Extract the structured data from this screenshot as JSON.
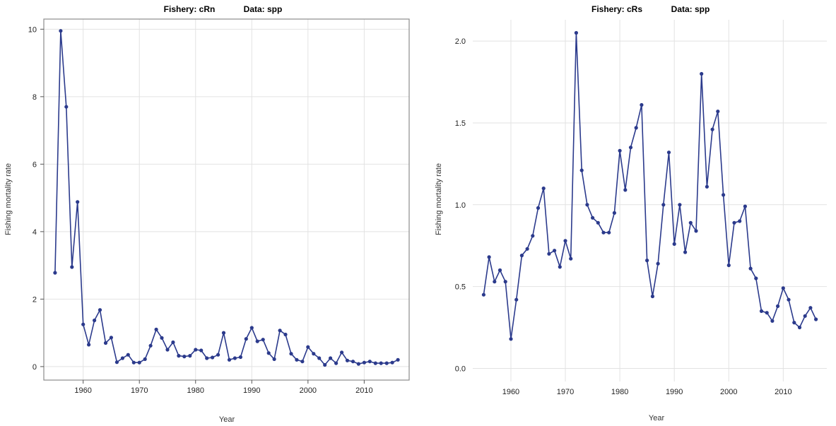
{
  "chart_data": [
    {
      "type": "line",
      "title_left": "Fishery: cRn",
      "title_right": "Data: spp",
      "xlabel": "Year",
      "ylabel": "Fishing mortality rate",
      "xlim": [
        1953,
        2018
      ],
      "ylim": [
        -0.4,
        10.3
      ],
      "xticks": [
        1960,
        1970,
        1980,
        1990,
        2000,
        2010
      ],
      "yticks": [
        0,
        2,
        4,
        6,
        8,
        10
      ],
      "grid": true,
      "color": "#2b3a8c",
      "x": [
        1955,
        1956,
        1957,
        1958,
        1959,
        1960,
        1961,
        1962,
        1963,
        1964,
        1965,
        1966,
        1967,
        1968,
        1969,
        1970,
        1971,
        1972,
        1973,
        1974,
        1975,
        1976,
        1977,
        1978,
        1979,
        1980,
        1981,
        1982,
        1983,
        1984,
        1985,
        1986,
        1987,
        1988,
        1989,
        1990,
        1991,
        1992,
        1993,
        1994,
        1995,
        1996,
        1997,
        1998,
        1999,
        2000,
        2001,
        2002,
        2003,
        2004,
        2005,
        2006,
        2007,
        2008,
        2009,
        2010,
        2011,
        2012,
        2013,
        2014,
        2015,
        2016
      ],
      "y": [
        2.78,
        9.95,
        7.7,
        2.95,
        4.88,
        1.25,
        0.65,
        1.37,
        1.68,
        0.7,
        0.86,
        0.13,
        0.25,
        0.35,
        0.12,
        0.12,
        0.22,
        0.62,
        1.1,
        0.85,
        0.5,
        0.72,
        0.32,
        0.3,
        0.32,
        0.5,
        0.48,
        0.25,
        0.27,
        0.35,
        1.0,
        0.2,
        0.25,
        0.28,
        0.82,
        1.15,
        0.75,
        0.8,
        0.4,
        0.22,
        1.07,
        0.95,
        0.38,
        0.2,
        0.15,
        0.58,
        0.38,
        0.25,
        0.05,
        0.25,
        0.1,
        0.42,
        0.18,
        0.15,
        0.08,
        0.12,
        0.15,
        0.1,
        0.1,
        0.1,
        0.12,
        0.2
      ]
    },
    {
      "type": "line",
      "title_left": "Fishery: cRs",
      "title_right": "Data: spp",
      "xlabel": "Year",
      "ylabel": "Fishing mortality rate",
      "xlim": [
        1953,
        2018
      ],
      "ylim": [
        -0.08,
        2.13
      ],
      "xticks": [
        1960,
        1970,
        1980,
        1990,
        2000,
        2010
      ],
      "yticks": [
        0.0,
        0.5,
        1.0,
        1.5,
        2.0
      ],
      "ytick_labels": [
        "0.0",
        "0.5",
        "1.0",
        "1.5",
        "2.0"
      ],
      "grid": true,
      "color": "#2b3a8c",
      "x": [
        1955,
        1956,
        1957,
        1958,
        1959,
        1960,
        1961,
        1962,
        1963,
        1964,
        1965,
        1966,
        1967,
        1968,
        1969,
        1970,
        1971,
        1972,
        1973,
        1974,
        1975,
        1976,
        1977,
        1978,
        1979,
        1980,
        1981,
        1982,
        1983,
        1984,
        1985,
        1986,
        1987,
        1988,
        1989,
        1990,
        1991,
        1992,
        1993,
        1994,
        1995,
        1996,
        1997,
        1998,
        1999,
        2000,
        2001,
        2002,
        2003,
        2004,
        2005,
        2006,
        2007,
        2008,
        2009,
        2010,
        2011,
        2012,
        2013,
        2014,
        2015,
        2016
      ],
      "y": [
        0.45,
        0.68,
        0.53,
        0.6,
        0.53,
        0.18,
        0.42,
        0.69,
        0.73,
        0.81,
        0.98,
        1.1,
        0.7,
        0.72,
        0.62,
        0.78,
        0.67,
        2.05,
        1.21,
        1.0,
        0.92,
        0.89,
        0.83,
        0.83,
        0.95,
        1.33,
        1.09,
        1.35,
        1.47,
        1.61,
        0.66,
        0.44,
        0.64,
        1.0,
        1.32,
        0.76,
        1.0,
        0.71,
        0.89,
        0.84,
        1.8,
        1.11,
        1.46,
        1.57,
        1.06,
        0.63,
        0.89,
        0.9,
        0.99,
        0.61,
        0.55,
        0.35,
        0.34,
        0.29,
        0.38,
        0.49,
        0.42,
        0.28,
        0.25,
        0.32,
        0.37,
        0.3
      ]
    }
  ]
}
